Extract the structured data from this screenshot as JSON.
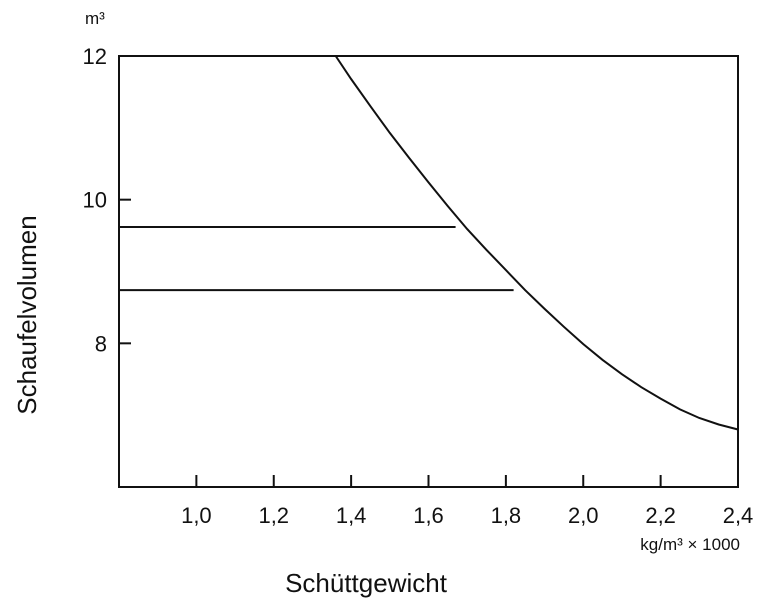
{
  "chart_data": {
    "type": "line",
    "title": "",
    "xlabel": "Schüttgewicht",
    "x_unit": "kg/m³ × 1000",
    "ylabel": "Schaufelvolumen",
    "y_unit": "m³",
    "xlim": [
      0.8,
      2.4
    ],
    "ylim": [
      6.0,
      12.0
    ],
    "x_ticks": [
      "1,0",
      "1,2",
      "1,4",
      "1,6",
      "1,8",
      "2,0",
      "2,2",
      "2,4"
    ],
    "x_tick_values": [
      1.0,
      1.2,
      1.4,
      1.6,
      1.8,
      2.0,
      2.2,
      2.4
    ],
    "y_ticks": [
      "8",
      "10",
      "12"
    ],
    "y_tick_values": [
      8,
      10,
      12
    ],
    "grid": false,
    "series": [
      {
        "x": [
          1.36,
          1.4,
          1.45,
          1.5,
          1.55,
          1.6,
          1.65,
          1.7,
          1.75,
          1.8,
          1.85,
          1.9,
          1.95,
          2.0,
          2.05,
          2.1,
          2.15,
          2.2,
          2.25,
          2.3,
          2.35,
          2.4
        ],
        "y": [
          12.0,
          11.68,
          11.3,
          10.93,
          10.58,
          10.24,
          9.91,
          9.59,
          9.3,
          9.02,
          8.74,
          8.48,
          8.23,
          7.99,
          7.77,
          7.57,
          7.39,
          7.23,
          7.08,
          6.96,
          6.87,
          6.8
        ]
      }
    ],
    "reference_lines": [
      {
        "y": 9.62,
        "x_end": 1.67
      },
      {
        "y": 8.74,
        "x_end": 1.82
      }
    ]
  }
}
